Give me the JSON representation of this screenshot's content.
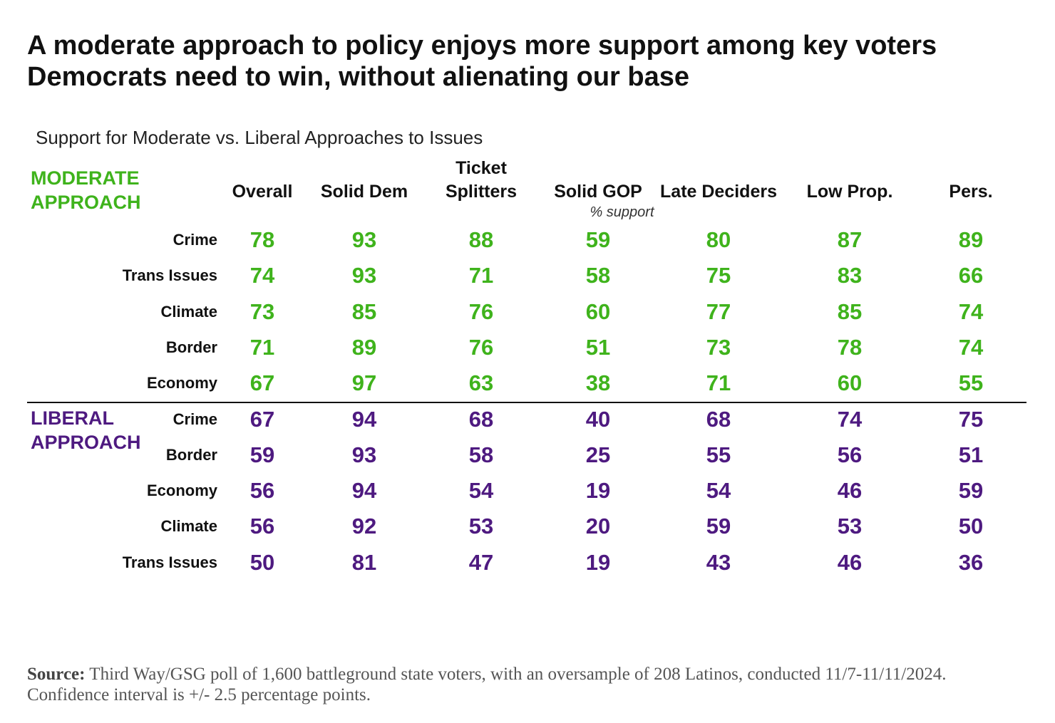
{
  "title": "A moderate approach to policy enjoys more support among key voters Democrats need to win, without alienating our base",
  "subtitle": "Support for Moderate vs. Liberal Approaches to Issues",
  "table": {
    "columns": [
      "Overall",
      "Solid Dem",
      "Ticket Splitters",
      "Solid GOP",
      "Late Deciders",
      "Low Prop.",
      "Pers."
    ],
    "note": "% support",
    "groups": [
      {
        "label": "MODERATE APPROACH",
        "color": "#3fb31c",
        "rows": [
          {
            "label": "Crime",
            "values": [
              78,
              93,
              88,
              59,
              80,
              87,
              89
            ]
          },
          {
            "label": "Trans Issues",
            "values": [
              74,
              93,
              71,
              58,
              75,
              83,
              66
            ]
          },
          {
            "label": "Climate",
            "values": [
              73,
              85,
              76,
              60,
              77,
              85,
              74
            ]
          },
          {
            "label": "Border",
            "values": [
              71,
              89,
              76,
              51,
              73,
              78,
              74
            ]
          },
          {
            "label": "Economy",
            "values": [
              67,
              97,
              63,
              38,
              71,
              60,
              55
            ]
          }
        ]
      },
      {
        "label": "LIBERAL APPROACH",
        "color": "#4e1a80",
        "rows": [
          {
            "label": "Crime",
            "values": [
              67,
              94,
              68,
              40,
              68,
              74,
              75
            ]
          },
          {
            "label": "Border",
            "values": [
              59,
              93,
              58,
              25,
              55,
              56,
              51
            ]
          },
          {
            "label": "Economy",
            "values": [
              56,
              94,
              54,
              19,
              54,
              46,
              59
            ]
          },
          {
            "label": "Climate",
            "values": [
              56,
              92,
              53,
              20,
              59,
              53,
              50
            ]
          },
          {
            "label": "Trans Issues",
            "values": [
              50,
              81,
              47,
              19,
              43,
              46,
              36
            ]
          }
        ]
      }
    ]
  },
  "source": {
    "label": "Source:",
    "text": "Third Way/GSG poll of 1,600 battleground state voters, with an oversample of 208 Latinos, conducted 11/7-11/11/2024. Confidence interval is +/- 2.5 percentage points."
  }
}
